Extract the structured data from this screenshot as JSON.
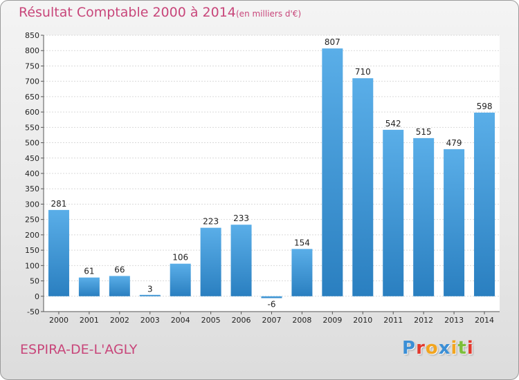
{
  "chart_data": {
    "type": "bar",
    "title": "Résultat Comptable 2000 à 2014",
    "subtitle": "(en milliers d'€)",
    "categories": [
      "2000",
      "2001",
      "2002",
      "2003",
      "2004",
      "2005",
      "2006",
      "2007",
      "2008",
      "2009",
      "2010",
      "2011",
      "2012",
      "2013",
      "2014"
    ],
    "values": [
      281,
      61,
      66,
      3,
      106,
      223,
      233,
      -6,
      154,
      807,
      710,
      542,
      515,
      479,
      598
    ],
    "ylim": [
      -50,
      850
    ],
    "yticks": [
      -50,
      0,
      50,
      100,
      150,
      200,
      250,
      300,
      350,
      400,
      450,
      500,
      550,
      600,
      650,
      700,
      750,
      800,
      850
    ],
    "grid": true,
    "legend": "none",
    "colors": {
      "bar_light": "#5aaee8",
      "bar_dark": "#2a7fc0",
      "title": "#c8467a"
    }
  },
  "footer": {
    "commune": "ESPIRA-DE-L'AGLY",
    "logo": "Proxiti"
  },
  "logo_colors": [
    "#3b8fd6",
    "#e2392e",
    "#f2a51f",
    "#3b8fd6",
    "#f2a51f",
    "#7cbf3a",
    "#e2392e"
  ]
}
